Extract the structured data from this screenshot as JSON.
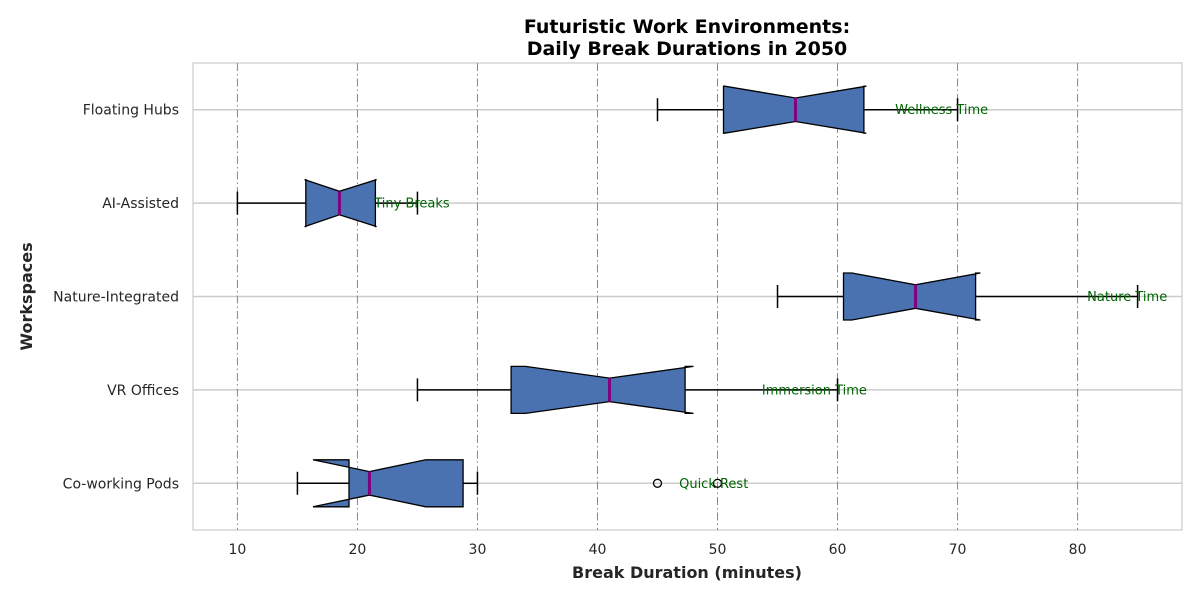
{
  "chart_data": {
    "type": "boxplot",
    "orientation": "horizontal",
    "notched": true,
    "title": [
      "Futuristic Work Environments:",
      "Daily Break Durations in 2050"
    ],
    "xlabel": "Break Duration (minutes)",
    "ylabel": "Workspaces",
    "xlim": [
      6.3,
      88.7
    ],
    "xticks": [
      10,
      20,
      30,
      40,
      50,
      60,
      70,
      80
    ],
    "xtick_labels": [
      "10",
      "20",
      "30",
      "40",
      "50",
      "60",
      "70",
      "80"
    ],
    "grid": true,
    "categories": [
      "Co-working Pods",
      "VR Offices",
      "Nature-Integrated",
      "AI-Assisted",
      "Floating Hubs"
    ],
    "boxes": [
      {
        "category": "Co-working Pods",
        "whisker_low": 15,
        "q1": 19.3,
        "median": 21,
        "q3": 28.8,
        "whisker_high": 30,
        "notch_low": 16.3,
        "notch_high": 25.7,
        "outliers": [
          45,
          50
        ]
      },
      {
        "category": "VR Offices",
        "whisker_low": 25,
        "q1": 32.8,
        "median": 41,
        "q3": 47.3,
        "whisker_high": 60,
        "notch_low": 34,
        "notch_high": 48,
        "outliers": []
      },
      {
        "category": "Nature-Integrated",
        "whisker_low": 55,
        "q1": 60.5,
        "median": 66.5,
        "q3": 71.5,
        "whisker_high": 85,
        "notch_low": 61.2,
        "notch_high": 71.9,
        "outliers": []
      },
      {
        "category": "AI-Assisted",
        "whisker_low": 10,
        "q1": 15.7,
        "median": 18.5,
        "q3": 21.5,
        "whisker_high": 25,
        "notch_low": 15.6,
        "notch_high": 21.6,
        "outliers": []
      },
      {
        "category": "Floating Hubs",
        "whisker_low": 45,
        "q1": 50.5,
        "median": 56.5,
        "q3": 62.2,
        "whisker_high": 70,
        "notch_low": 50.6,
        "notch_high": 62.4,
        "outliers": []
      }
    ],
    "annotations": [
      {
        "category": "Co-working Pods",
        "text": "Quick Rest",
        "x": 46.8
      },
      {
        "category": "VR Offices",
        "text": "Immersion Time",
        "x": 53.7
      },
      {
        "category": "Nature-Integrated",
        "text": "Nature Time",
        "x": 80.8
      },
      {
        "category": "AI-Assisted",
        "text": "Tiny Breaks",
        "x": 21.4
      },
      {
        "category": "Floating Hubs",
        "text": "Wellness Time",
        "x": 64.8
      }
    ],
    "colors": {
      "box_fill": "#4a72b0",
      "median": "#800080",
      "vgrid": "#7b7bf0",
      "hgrid": "#cccccc",
      "annotation": "#006400",
      "title": "#191970"
    }
  }
}
